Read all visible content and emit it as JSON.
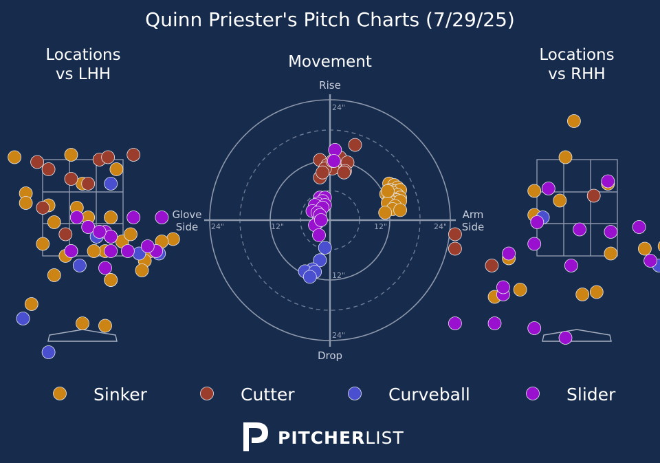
{
  "title": "Quinn Priester's Pitch Charts (7/29/25)",
  "panels": {
    "lhh_title_line1": "Locations",
    "lhh_title_line2": "vs LHH",
    "movement_title": "Movement",
    "rhh_title_line1": "Locations",
    "rhh_title_line2": "vs RHH"
  },
  "movement_axes": {
    "top": "Rise",
    "bottom": "Drop",
    "left_line1": "Glove",
    "left_line2": "Side",
    "right_line1": "Arm",
    "right_line2": "Side",
    "tick_12": "12\"",
    "tick_24": "24\""
  },
  "legend": [
    {
      "label": "Sinker",
      "color": "#cc8514"
    },
    {
      "label": "Cutter",
      "color": "#9a3d2c"
    },
    {
      "label": "Curveball",
      "color": "#4a4fcf"
    },
    {
      "label": "Slider",
      "color": "#9a10cf"
    }
  ],
  "brand": {
    "bold": "PITCHER",
    "light": "LIST"
  },
  "chart_data": [
    {
      "type": "scatter",
      "title": "Locations vs LHH",
      "xlabel": "",
      "ylabel": "",
      "series": [
        {
          "name": "Sinker",
          "points": [
            [
              -1.2,
              3.55
            ],
            [
              -0.2,
              3.6
            ],
            [
              0.6,
              3.3
            ],
            [
              -1.0,
              2.8
            ],
            [
              -1.0,
              2.6
            ],
            [
              -0.6,
              2.55
            ],
            [
              -0.1,
              2.5
            ],
            [
              0.1,
              2.3
            ],
            [
              0.5,
              2.3
            ],
            [
              0.7,
              1.8
            ],
            [
              0.85,
              1.95
            ],
            [
              1.6,
              1.85
            ],
            [
              1.2,
              1.6
            ],
            [
              1.1,
              1.4
            ],
            [
              1.05,
              1.2
            ],
            [
              0.4,
              1.6
            ],
            [
              0.2,
              1.6
            ],
            [
              -0.3,
              1.5
            ],
            [
              -0.7,
              1.75
            ],
            [
              -0.5,
              2.2
            ],
            [
              1.4,
              1.8
            ],
            [
              0.3,
              2.0
            ],
            [
              0.5,
              1.0
            ],
            [
              0.5,
              1.0
            ],
            [
              -0.5,
              1.1
            ],
            [
              -0.9,
              0.5
            ],
            [
              0.0,
              0.1
            ],
            [
              0.4,
              0.05
            ],
            [
              0.0,
              3.0
            ],
            [
              -2.15,
              2.3
            ],
            [
              0.5,
              2.3
            ]
          ]
        },
        {
          "name": "Cutter",
          "points": [
            [
              -0.6,
              3.3
            ],
            [
              -0.8,
              3.45
            ],
            [
              0.3,
              3.5
            ],
            [
              0.45,
              3.55
            ],
            [
              0.9,
              3.6
            ],
            [
              0.1,
              3.0
            ],
            [
              -0.2,
              3.1
            ],
            [
              -0.7,
              2.5
            ],
            [
              -0.3,
              1.95
            ]
          ]
        },
        {
          "name": "Curveball",
          "points": [
            [
              0.5,
              3.0
            ],
            [
              0.25,
              1.9
            ],
            [
              1.0,
              1.55
            ],
            [
              1.35,
              1.55
            ],
            [
              -1.05,
              0.2
            ],
            [
              -0.6,
              -0.5
            ],
            [
              -0.05,
              1.3
            ],
            [
              -1.95,
              0.85
            ]
          ]
        },
        {
          "name": "Slider",
          "points": [
            [
              0.1,
              2.1
            ],
            [
              0.4,
              2.0
            ],
            [
              0.5,
              1.9
            ],
            [
              0.5,
              1.9
            ],
            [
              0.5,
              1.6
            ],
            [
              1.3,
              1.6
            ],
            [
              0.8,
              1.6
            ],
            [
              0.3,
              2.0
            ],
            [
              -1.7,
              2.6
            ],
            [
              -0.1,
              2.3
            ],
            [
              1.15,
              1.7
            ],
            [
              0.9,
              2.3
            ],
            [
              0.4,
              1.25
            ],
            [
              -0.2,
              1.6
            ],
            [
              1.4,
              2.3
            ],
            [
              -0.2,
              1.6
            ]
          ]
        }
      ]
    },
    {
      "type": "scatter",
      "title": "Movement",
      "xlabel": "Arm Side",
      "ylabel": "Rise",
      "xlim": [
        -24,
        24
      ],
      "ylim": [
        -24,
        24
      ],
      "series": [
        {
          "name": "Sinker",
          "points": [
            [
              11.8,
              7.3
            ],
            [
              12.8,
              7.0
            ],
            [
              13.5,
              6.5
            ],
            [
              12.0,
              6.0
            ],
            [
              13.0,
              5.8
            ],
            [
              14.0,
              6.0
            ],
            [
              12.5,
              5.5
            ],
            [
              13.5,
              5.0
            ],
            [
              14.0,
              4.5
            ],
            [
              11.2,
              5.2
            ],
            [
              12.5,
              4.3
            ],
            [
              13.3,
              4.0
            ],
            [
              11.8,
              4.0
            ],
            [
              12.5,
              3.5
            ],
            [
              14.0,
              3.8
            ],
            [
              11.5,
              3.4
            ],
            [
              13.0,
              2.8
            ],
            [
              12.5,
              2.2
            ],
            [
              14.0,
              2.0
            ],
            [
              11.0,
              1.5
            ],
            [
              11.5,
              5.8
            ]
          ]
        },
        {
          "name": "Cutter",
          "points": [
            [
              5.0,
              15.0
            ],
            [
              2.0,
              12.5
            ],
            [
              3.5,
              11.5
            ],
            [
              -2.0,
              12.0
            ],
            [
              -0.5,
              11.0
            ],
            [
              1.0,
              10.5
            ],
            [
              0.5,
              10.3
            ],
            [
              -1.0,
              10.3
            ],
            [
              3.0,
              9.8
            ],
            [
              2.8,
              9.5
            ],
            [
              -2.0,
              8.5
            ],
            [
              -1.5,
              9.5
            ],
            [
              0.5,
              11.8
            ]
          ]
        },
        {
          "name": "Curveball",
          "points": [
            [
              -1.0,
              -5.5
            ],
            [
              -2.0,
              -8.0
            ],
            [
              -3.5,
              -9.8
            ],
            [
              -5.0,
              -10.2
            ],
            [
              -3.0,
              -10.3
            ],
            [
              -4.0,
              -11.3
            ]
          ]
        },
        {
          "name": "Slider",
          "points": [
            [
              1.0,
              14.0
            ],
            [
              -2.0,
              4.5
            ],
            [
              -1.0,
              4.5
            ],
            [
              -1.5,
              3.8
            ],
            [
              -2.5,
              3.3
            ],
            [
              -1.0,
              3.0
            ],
            [
              -3.0,
              3.0
            ],
            [
              -1.5,
              2.5
            ],
            [
              -3.5,
              1.8
            ],
            [
              -2.5,
              1.5
            ],
            [
              -2.0,
              1.0
            ],
            [
              -2.5,
              -0.5
            ],
            [
              -3.0,
              -1.0
            ],
            [
              -1.8,
              0.0
            ],
            [
              -2.2,
              -3.0
            ],
            [
              0.8,
              11.8
            ]
          ]
        }
      ]
    },
    {
      "type": "scatter",
      "title": "Locations vs RHH",
      "xlabel": "",
      "ylabel": "",
      "series": [
        {
          "name": "Sinker",
          "points": [
            [
              -0.05,
              4.3
            ],
            [
              -0.2,
              3.55
            ],
            [
              -0.75,
              2.85
            ],
            [
              -0.3,
              2.65
            ],
            [
              -0.75,
              2.35
            ],
            [
              0.55,
              3.0
            ],
            [
              1.2,
              1.65
            ],
            [
              1.55,
              1.7
            ],
            [
              0.6,
              1.55
            ],
            [
              -1.2,
              1.45
            ],
            [
              -1.0,
              0.8
            ],
            [
              -1.45,
              0.65
            ],
            [
              0.35,
              0.75
            ],
            [
              0.1,
              0.7
            ]
          ]
        },
        {
          "name": "Cutter",
          "points": [
            [
              -2.15,
              1.95
            ],
            [
              -2.15,
              1.65
            ],
            [
              0.3,
              2.75
            ],
            [
              -1.5,
              1.3
            ]
          ]
        },
        {
          "name": "Curveball",
          "points": [
            [
              -0.6,
              2.3
            ],
            [
              1.45,
              1.3
            ],
            [
              1.6,
              1.3
            ]
          ]
        },
        {
          "name": "Slider",
          "points": [
            [
              -0.5,
              2.9
            ],
            [
              0.55,
              3.05
            ],
            [
              0.6,
              2.0
            ],
            [
              1.1,
              2.1
            ],
            [
              -0.7,
              2.2
            ],
            [
              0.05,
              2.05
            ],
            [
              -0.75,
              1.75
            ],
            [
              -1.2,
              1.55
            ],
            [
              -0.1,
              1.3
            ],
            [
              1.3,
              1.4
            ],
            [
              -1.3,
              0.7
            ],
            [
              -1.3,
              0.85
            ],
            [
              -2.15,
              0.1
            ],
            [
              -1.45,
              0.1
            ],
            [
              -0.75,
              0.0
            ],
            [
              -0.2,
              -0.2
            ]
          ]
        }
      ]
    }
  ]
}
